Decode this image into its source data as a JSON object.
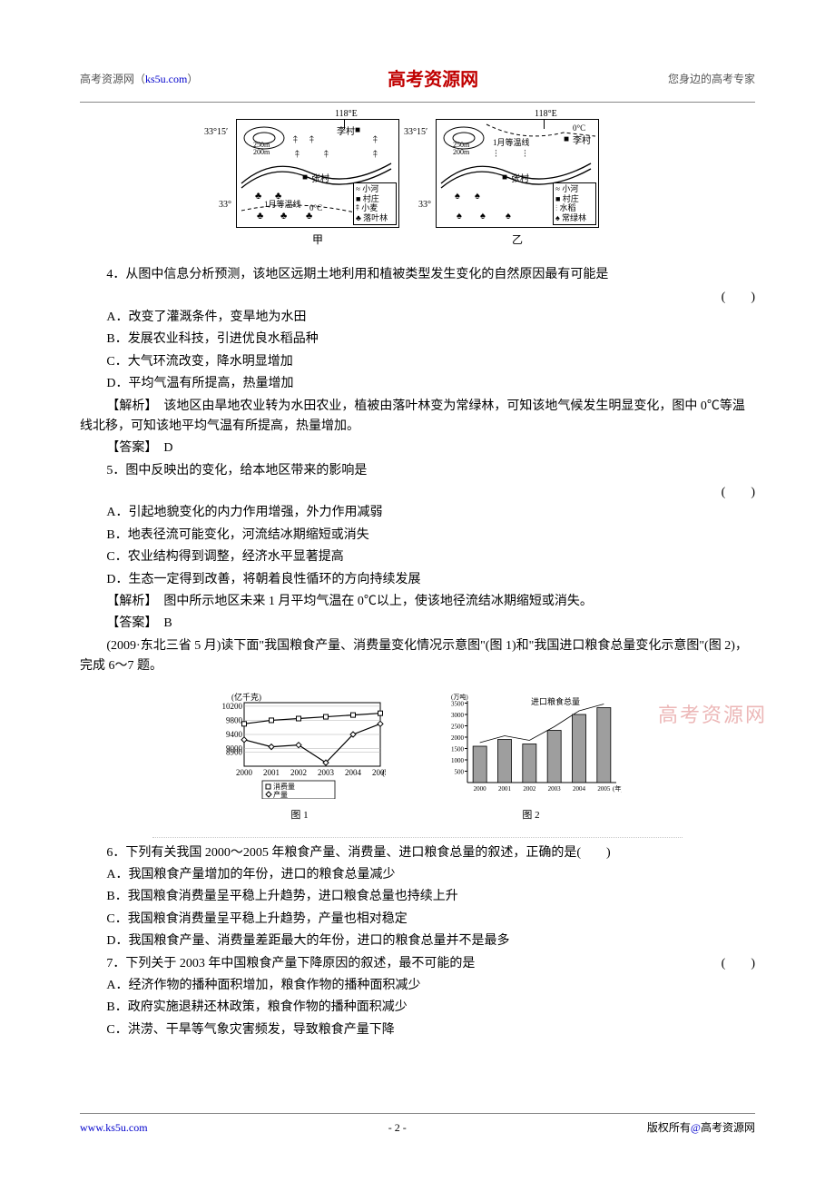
{
  "header": {
    "left_prefix": "高考资源网（",
    "left_link": "ks5u.com",
    "left_suffix": "）",
    "center": "高考资源网",
    "right": "您身边的高考专家"
  },
  "maps": {
    "longitude_label": "118°E",
    "latitude_top": "33°15′",
    "latitude_bottom": "33°",
    "temp_label": "0°C",
    "isotherm_label": "1月等温线",
    "contour_250": "250m",
    "contour_200": "200m",
    "village_li": "李村",
    "village_zhang": "张村",
    "legend_river": "小河",
    "legend_village": "村庄",
    "legend_wheat": "小麦",
    "legend_deciduous": "落叶林",
    "legend_rice": "水稻",
    "legend_evergreen": "常绿林",
    "caption_a": "甲",
    "caption_b": "乙"
  },
  "q4": {
    "stem": "4．从图中信息分析预测，该地区远期土地利用和植被类型发生变化的自然原因最有可能是",
    "paren": "(　　)",
    "optA": "A．改变了灌溉条件，变旱地为水田",
    "optB": "B．发展农业科技，引进优良水稻品种",
    "optC": "C．大气环流改变，降水明显增加",
    "optD": "D．平均气温有所提高，热量增加",
    "analysis": "【解析】　该地区由旱地农业转为水田农业，植被由落叶林变为常绿林，可知该地气候发生明显变化，图中 0℃等温线北移，可知该地平均气温有所提高，热量增加。",
    "answer": "【答案】　D"
  },
  "q5": {
    "stem": "5．图中反映出的变化，给本地区带来的影响是",
    "paren": "(　　)",
    "optA": "A．引起地貌变化的内力作用增强，外力作用减弱",
    "optB": "B．地表径流可能变化，河流结冰期缩短或消失",
    "optC": "C．农业结构得到调整，经济水平显著提高",
    "optD": "D．生态一定得到改善，将朝着良性循环的方向持续发展",
    "analysis": "【解析】　图中所示地区未来 1 月平均气温在 0℃以上，使该地径流结冰期缩短或消失。",
    "answer": "【答案】　B"
  },
  "source_line": "(2009·东北三省 5 月)读下面\"我国粮食产量、消费量变化情况示意图\"(图 1)和\"我国进口粮食总量变化示意图\"(图 2)，完成 6～7 题。",
  "chart1": {
    "type": "line",
    "y_unit": "(亿千克)",
    "x_unit": "(年)",
    "years": [
      "2000",
      "2001",
      "2002",
      "2003",
      "2004",
      "2005"
    ],
    "y_ticks": [
      8900,
      9000,
      9400,
      9800,
      10200
    ],
    "series": {
      "consumption": {
        "label": "消费量",
        "marker": "square",
        "color": "#000000",
        "values": [
          9700,
          9800,
          9850,
          9900,
          9950,
          10000
        ]
      },
      "production": {
        "label": "产量",
        "marker": "diamond",
        "color": "#000000",
        "values": [
          9250,
          9050,
          9100,
          8600,
          9400,
          9700
        ]
      }
    },
    "caption": "图 1",
    "background_color": "#ffffff",
    "grid_color": "#b0b0b0",
    "line_width": 1.2
  },
  "chart2": {
    "type": "bar",
    "y_unit": "(万吨)",
    "x_unit": "(年)",
    "title": "进口粮食总量",
    "years": [
      "2000",
      "2001",
      "2002",
      "2003",
      "2004",
      "2005"
    ],
    "y_ticks": [
      500,
      1000,
      1500,
      2000,
      2500,
      3000,
      3500
    ],
    "values": [
      1600,
      1900,
      1700,
      2300,
      3000,
      3300
    ],
    "bar_color": "#9e9e9e",
    "bar_border": "#000000",
    "caption": "图 2",
    "background_color": "#ffffff",
    "grid_color": "#b0b0b0",
    "bar_width": 0.55
  },
  "watermark": "高考资源网",
  "q6": {
    "stem": "6．下列有关我国 2000～2005 年粮食产量、消费量、进口粮食总量的叙述，正确的是(　　)",
    "optA": "A．我国粮食产量增加的年份，进口的粮食总量减少",
    "optB": "B．我国粮食消费量呈平稳上升趋势，进口粮食总量也持续上升",
    "optC": "C．我国粮食消费量呈平稳上升趋势，产量也相对稳定",
    "optD": "D．我国粮食产量、消费量差距最大的年份，进口的粮食总量并不是最多"
  },
  "q7": {
    "stem": "7．下列关于 2003 年中国粮食产量下降原因的叙述，最不可能的是",
    "paren": "(　　)",
    "optA": "A．经济作物的播种面积增加，粮食作物的播种面积减少",
    "optB": "B．政府实施退耕还林政策，粮食作物的播种面积减少",
    "optC": "C．洪涝、干旱等气象灾害频发，导致粮食产量下降"
  },
  "footer": {
    "left": "www.ks5u.com",
    "center": "- 2 -",
    "right_text": "版权所有",
    "right_at": "@",
    "right_brand": "高考资源网"
  }
}
